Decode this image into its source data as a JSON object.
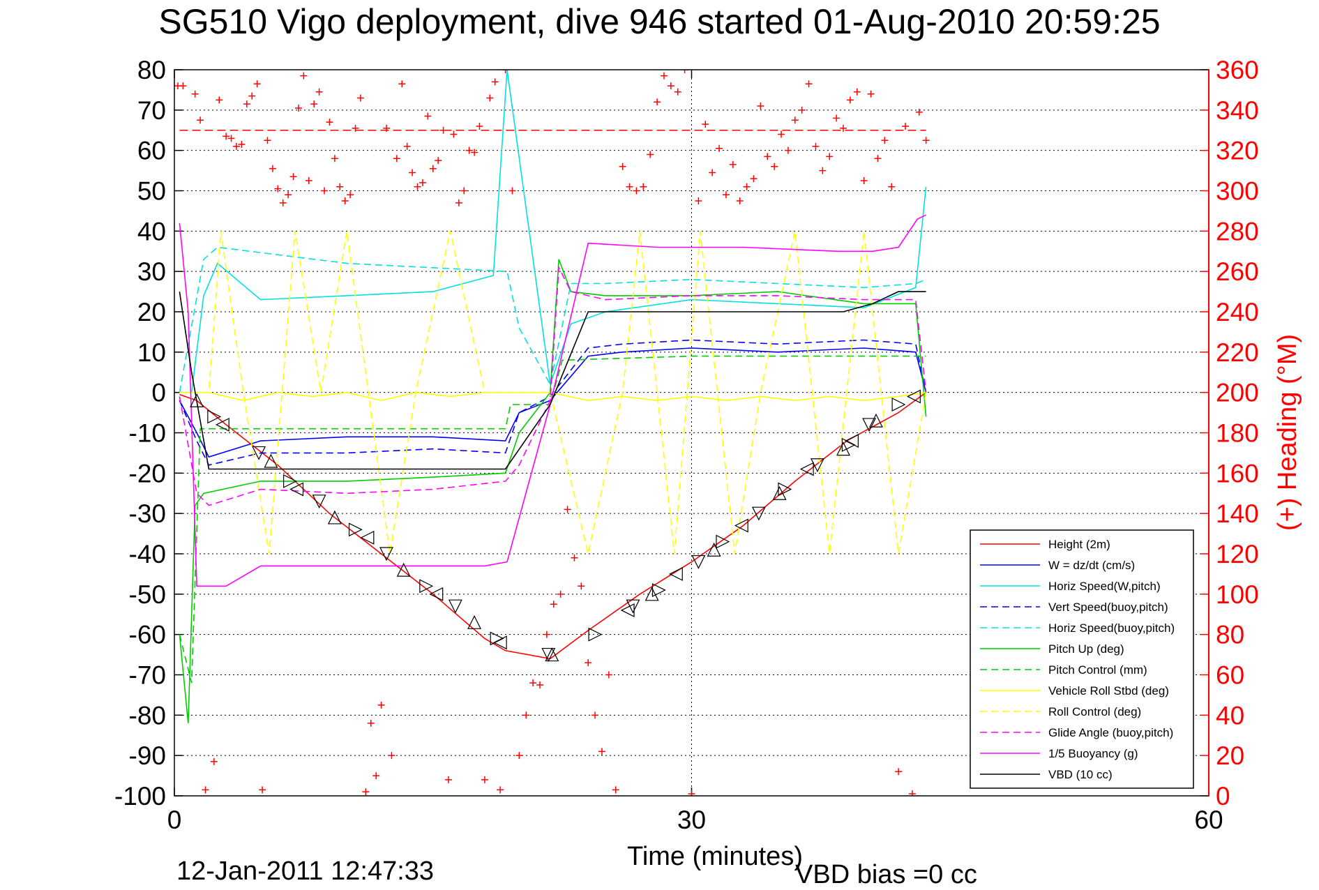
{
  "title": "SG510 Vigo deployment, dive 946 started 01-Aug-2010 20:59:25",
  "timestamp": "12-Jan-2011 12:47:33",
  "vbd_bias": "VBD bias =0 cc",
  "chart_data": {
    "type": "line",
    "title": "SG510 Vigo deployment, dive 946 started 01-Aug-2010 20:59:25",
    "xlabel": "Time (minutes)",
    "ylabel": "",
    "y2label": "(+) Heading (°M)",
    "xlim": [
      0,
      60
    ],
    "ylim": [
      -100,
      80
    ],
    "y2lim": [
      0,
      360
    ],
    "xticks": [
      0,
      30,
      60
    ],
    "yticks": [
      80,
      70,
      60,
      50,
      40,
      30,
      20,
      10,
      0,
      -10,
      -20,
      -30,
      -40,
      -50,
      -60,
      -70,
      -80,
      -90,
      -100
    ],
    "y2ticks": [
      360,
      340,
      320,
      300,
      280,
      260,
      240,
      220,
      200,
      180,
      160,
      140,
      120,
      100,
      80,
      60,
      40,
      20,
      0
    ],
    "grid": true,
    "legend_position": "bottom-right",
    "colors": {
      "axis_right": "#ff0000"
    },
    "series": [
      {
        "name": "Height (2m)",
        "color": "#ff0000",
        "dash": "solid",
        "x": [
          0.3,
          1.3,
          3,
          6,
          9,
          12,
          15,
          18,
          19.2,
          21.8,
          24,
          27,
          30,
          33,
          36,
          39,
          42,
          43.6
        ],
        "y": [
          -0.5,
          -2,
          -8,
          -18,
          -30,
          -40,
          -50,
          -61,
          -64,
          -66,
          -59,
          -50,
          -42,
          -33,
          -22,
          -12,
          -5,
          0
        ]
      },
      {
        "name": "W = dz/dt (cm/s)",
        "color": "#0000ff",
        "dash": "solid",
        "x": [
          0.3,
          1.3,
          2,
          5,
          10,
          15,
          19.2,
          20,
          21.8,
          24,
          26,
          30,
          35,
          40,
          43,
          43.6
        ],
        "y": [
          -2,
          -10,
          -16,
          -12,
          -11,
          -11,
          -12,
          -5,
          -2,
          9,
          10,
          11,
          10,
          11,
          10,
          0
        ]
      },
      {
        "name": "Horiz Speed(W,pitch)",
        "color": "#00e0e0",
        "dash": "solid",
        "x": [
          0.3,
          1,
          1.7,
          2.5,
          5,
          10,
          15,
          18.5,
          19.3,
          21.8,
          23,
          25,
          30,
          35,
          40,
          43,
          43.6
        ],
        "y": [
          0,
          0,
          24,
          32,
          23,
          24,
          25,
          29,
          80,
          2,
          17,
          20,
          23,
          22,
          21,
          26,
          51
        ]
      },
      {
        "name": "Vert Speed(buoy,pitch)",
        "color": "#0000ff",
        "dash": "dashed",
        "x": [
          0.3,
          1.3,
          2,
          5,
          10,
          15,
          19.2,
          20,
          21.8,
          24,
          26,
          30,
          35,
          40,
          43,
          43.6
        ],
        "y": [
          -2,
          -12,
          -18,
          -15,
          -15,
          -14,
          -15,
          -5,
          -1,
          11,
          12,
          13,
          12,
          13,
          12,
          0
        ]
      },
      {
        "name": "Horiz Speed(buoy,pitch)",
        "color": "#00e0e0",
        "dash": "dashed",
        "x": [
          0.3,
          1.7,
          2.5,
          10,
          19.3,
          20,
          21.8,
          23,
          25,
          30,
          35,
          40,
          43,
          43.6
        ],
        "y": [
          0,
          33,
          36,
          32,
          30,
          16,
          2,
          27,
          27,
          28,
          27,
          26,
          27,
          28
        ]
      },
      {
        "name": "Pitch Up (deg)",
        "color": "#00cc00",
        "dash": "solid",
        "x": [
          0.3,
          0.8,
          1.2,
          1.7,
          5,
          10,
          15,
          19.2,
          20,
          21.8,
          22.3,
          23,
          25,
          30,
          35,
          40,
          43,
          43.6
        ],
        "y": [
          -60,
          -82,
          -28,
          -25,
          -22,
          -22,
          -21,
          -20,
          -10,
          0,
          33,
          25,
          24,
          24,
          25,
          22,
          22,
          -6
        ]
      },
      {
        "name": "Pitch Control (mm)",
        "color": "#00cc00",
        "dash": "dashed",
        "x": [
          0.3,
          1.0,
          1.5,
          10,
          19.2,
          19.5,
          21.8,
          22.5,
          30,
          40,
          43.6
        ],
        "y": [
          -60,
          -72,
          -9,
          -9,
          -9,
          -3,
          -3,
          8,
          9,
          9,
          9
        ]
      },
      {
        "name": "Vehicle Roll Stbd (deg)",
        "color": "#ffff00",
        "dash": "solid",
        "x": [
          0.3,
          2,
          4,
          6,
          8,
          10,
          12,
          14,
          16,
          18,
          19.3,
          21.8,
          24,
          26,
          28,
          30,
          32,
          34,
          36,
          38,
          40,
          42,
          43.6
        ],
        "y": [
          0,
          0,
          -2,
          0,
          -1,
          0,
          -2,
          0,
          -1,
          0,
          0,
          0,
          -2,
          -1,
          -2,
          -1,
          -2,
          -1,
          -2,
          -1,
          -2,
          -1,
          0
        ]
      },
      {
        "name": "Roll Control (deg)",
        "color": "#ffff00",
        "dash": "dashed",
        "x": [
          0.3,
          2,
          2.7,
          4,
          5.5,
          7,
          8.5,
          10,
          12.5,
          14,
          16,
          18,
          19.3,
          21.8,
          24,
          26,
          27,
          29,
          30.5,
          32.5,
          34,
          36,
          38,
          40,
          42,
          43.6
        ],
        "y": [
          0,
          0,
          40,
          0,
          -40,
          40,
          0,
          40,
          -40,
          0,
          40,
          0,
          0,
          0,
          -40,
          0,
          40,
          -40,
          40,
          -40,
          0,
          40,
          -40,
          40,
          -40,
          0
        ]
      },
      {
        "name": "Glide Angle (buoy,pitch)",
        "color": "#ff00ff",
        "dash": "dashed",
        "x": [
          0.3,
          1.3,
          2,
          5,
          10,
          15,
          19.2,
          20,
          21.8,
          22.3,
          23,
          25,
          30,
          35,
          40,
          43,
          43.6
        ],
        "y": [
          -1,
          -25,
          -28,
          -24,
          -25,
          -24,
          -22,
          -18,
          -2,
          31,
          25,
          23,
          24,
          24,
          23,
          23,
          0
        ]
      },
      {
        "name": "1/5 Buoyancy (g)",
        "color": "#ff00ff",
        "dash": "solid",
        "x": [
          0.3,
          0.8,
          1.3,
          3,
          5,
          10,
          15,
          18,
          19.3,
          21.8,
          24,
          28,
          33,
          38.5,
          40.5,
          42,
          43.1,
          43.6
        ],
        "y": [
          42,
          20,
          -48,
          -48,
          -43,
          -43,
          -43,
          -43,
          -42,
          -3,
          37,
          36,
          36,
          35,
          35,
          36,
          43,
          44
        ]
      },
      {
        "name": "VBD (10 cc)",
        "color": "#000000",
        "dash": "solid",
        "x": [
          0.3,
          1,
          2,
          3,
          19.2,
          21.8,
          24,
          30,
          35,
          38.8,
          40.5,
          42,
          43.6
        ],
        "y": [
          25,
          5,
          -19,
          -19,
          -19,
          -3,
          20,
          20,
          20,
          20,
          22,
          25,
          25
        ]
      }
    ],
    "heading_mean_deg": 330,
    "heading_points": {
      "name": "Heading",
      "color": "#ff0000",
      "axis": "right",
      "x": [
        0.2,
        0.5,
        1.2,
        1.5,
        1.8,
        2.3,
        2.6,
        3.0,
        3.3,
        3.6,
        3.9,
        4.2,
        4.5,
        4.8,
        5.1,
        5.4,
        5.7,
        6.0,
        6.3,
        6.6,
        6.9,
        7.2,
        7.5,
        7.8,
        8.1,
        8.4,
        8.7,
        9.0,
        9.3,
        9.6,
        9.9,
        10.2,
        10.5,
        10.8,
        11.1,
        11.4,
        11.7,
        12.0,
        12.3,
        12.6,
        12.9,
        13.2,
        13.5,
        13.8,
        14.1,
        14.4,
        14.7,
        15.0,
        15.3,
        15.6,
        15.9,
        16.2,
        16.5,
        16.8,
        17.1,
        17.4,
        17.7,
        18.0,
        18.3,
        18.6,
        18.9,
        19.2,
        19.6,
        20.0,
        20.4,
        20.8,
        21.2,
        21.6,
        22.0,
        22.4,
        22.8,
        23.2,
        23.6,
        24.0,
        24.4,
        24.8,
        25.2,
        25.6,
        26.0,
        26.4,
        26.8,
        27.2,
        27.6,
        28.0,
        28.4,
        28.8,
        29.2,
        29.6,
        30.0,
        30.4,
        30.8,
        31.2,
        31.6,
        32.0,
        32.4,
        32.8,
        33.2,
        33.6,
        34.0,
        34.4,
        34.8,
        35.2,
        35.6,
        36.0,
        36.4,
        36.8,
        37.2,
        37.6,
        38.0,
        38.4,
        38.8,
        39.2,
        39.6,
        40.0,
        40.4,
        40.8,
        41.2,
        41.6,
        42.0,
        42.4,
        42.8,
        43.2,
        43.6
      ],
      "y": [
        352,
        352,
        348,
        335,
        3,
        17,
        345,
        327,
        326,
        322,
        323,
        343,
        347,
        353,
        3,
        325,
        311,
        301,
        294,
        298,
        307,
        341,
        357,
        305,
        343,
        349,
        300,
        334,
        316,
        302,
        295,
        298,
        331,
        346,
        2,
        36,
        10,
        45,
        331,
        20,
        316,
        353,
        322,
        309,
        302,
        304,
        337,
        311,
        315,
        330,
        8,
        328,
        294,
        300,
        320,
        319,
        332,
        8,
        346,
        354,
        3,
        360,
        300,
        20,
        40,
        56,
        55,
        80,
        95,
        100,
        142,
        118,
        104,
        66,
        40,
        22,
        60,
        3,
        312,
        302,
        300,
        302,
        318,
        344,
        357,
        352,
        349,
        360,
        1,
        295,
        333,
        309,
        321,
        298,
        313,
        295,
        302,
        306,
        342,
        317,
        312,
        328,
        320,
        335,
        340,
        353,
        322,
        310,
        317,
        336,
        331,
        345,
        349,
        305,
        348,
        316,
        325,
        302,
        12,
        332,
        1,
        339,
        325
      ]
    },
    "marker_points": {
      "name": "Triangle markers (on Height curve)",
      "color": "#000000",
      "x": [
        1.3,
        2.3,
        2.8,
        4.9,
        5.6,
        6.7,
        7.1,
        8.4,
        9.3,
        10.5,
        11.2,
        12.3,
        13.3,
        14.6,
        15.2,
        16.3,
        17.4,
        18.7,
        18.9,
        21.7,
        21.9,
        24.4,
        26.3,
        26.6,
        27.7,
        28.1,
        29.1,
        30.4,
        31.3,
        31.8,
        32.9,
        33.9,
        35.1,
        35.4,
        36.7,
        37.3,
        38.8,
        39.1,
        39.3,
        40.3,
        40.7,
        42.0,
        42.9
      ],
      "y": [
        -2,
        -6,
        -8,
        -15,
        -17,
        -22,
        -24,
        -27,
        -31,
        -34,
        -36,
        -40,
        -44,
        -48,
        -50,
        -53,
        -57,
        -61,
        -62,
        -65,
        -65,
        -60,
        -54,
        -53,
        -50,
        -49,
        -45,
        -42,
        -39,
        -37,
        -33,
        -30,
        -25,
        -24,
        -19,
        -18,
        -14,
        -13,
        -12,
        -8,
        -7,
        -3,
        -1
      ]
    }
  }
}
